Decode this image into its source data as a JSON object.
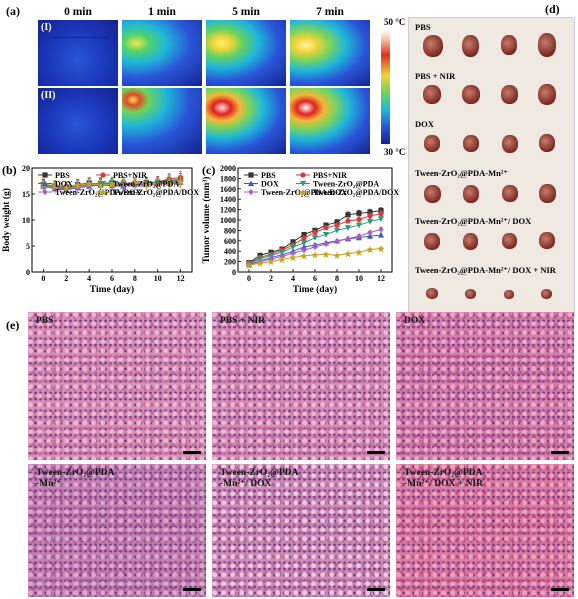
{
  "panel_a": {
    "label": "(a)",
    "times": [
      "0 min",
      "1 min",
      "5 min",
      "7 min"
    ],
    "rows": [
      "(I)",
      "(II)"
    ],
    "colorbar": {
      "max_label": "50 °C",
      "min_label": "30 °C"
    }
  },
  "panel_d": {
    "label": "(d)",
    "groups": [
      "PBS",
      "PBS + NIR",
      "DOX",
      "Tween-ZrO₂@PDA-Mn²⁺",
      "Tween-ZrO₂@PDA-Mn²⁺/ DOX",
      "Tween-ZrO₂@PDA-Mn²⁺/ DOX + NIR"
    ]
  },
  "panel_e": {
    "label": "(e)",
    "panels": [
      "PBS",
      "PBS + NIR",
      "DOX",
      "Tween-ZrO₂@PDA\n-Mn²⁺",
      "Tween-ZrO₂@PDA\n-Mn²⁺/ DOX",
      "Tween-ZrO₂@PDA\n-Mn²⁺/ DOX + NIR"
    ]
  },
  "chart_data": [
    {
      "panel_label": "(b)",
      "type": "line",
      "xlabel": "Time (day)",
      "ylabel": "Body weight (g)",
      "xlim": [
        -1,
        13
      ],
      "ylim": [
        0,
        20
      ],
      "xticks": [
        0,
        2,
        4,
        6,
        8,
        10,
        12
      ],
      "yticks": [
        0,
        5,
        10,
        15,
        20
      ],
      "x": [
        0,
        1,
        2,
        3,
        4,
        5,
        6,
        7,
        8,
        9,
        10,
        11,
        12
      ],
      "legend_position": "top",
      "series": [
        {
          "name": "PBS",
          "color": "#333333",
          "marker": "square",
          "values": [
            16.8,
            16.5,
            16.3,
            16.8,
            17.1,
            16.9,
            17.0,
            16.8,
            16.9,
            17.2,
            17.3,
            17.6,
            17.8
          ]
        },
        {
          "name": "PBS+NIR",
          "color": "#d93a3a",
          "marker": "circle",
          "values": [
            16.6,
            16.4,
            16.2,
            16.5,
            16.9,
            17.1,
            16.8,
            17.0,
            17.2,
            17.0,
            17.3,
            17.9,
            18.2
          ]
        },
        {
          "name": "DOX",
          "color": "#3a5fbf",
          "marker": "triangle",
          "values": [
            16.5,
            16.0,
            15.8,
            16.2,
            16.5,
            16.7,
            16.6,
            16.5,
            16.8,
            16.9,
            17.0,
            17.1,
            17.2
          ]
        },
        {
          "name": "Tween-ZrO₂@PDA",
          "color": "#2e9a7a",
          "marker": "triangle-down",
          "values": [
            16.7,
            16.3,
            16.0,
            16.6,
            16.8,
            17.0,
            17.2,
            17.1,
            16.9,
            17.1,
            17.2,
            17.4,
            17.5
          ]
        },
        {
          "name": "Tween-ZrO₂@PDA/DOX",
          "color": "#b05ac0",
          "marker": "diamond",
          "values": [
            16.4,
            16.1,
            15.9,
            16.3,
            16.6,
            16.8,
            16.7,
            16.6,
            16.8,
            16.7,
            16.9,
            17.0,
            17.1
          ]
        },
        {
          "name": "Tween-ZrO₂@PDA/DOX+NIR",
          "color": "#c9a21a",
          "marker": "star",
          "values": [
            16.9,
            16.6,
            16.4,
            16.7,
            17.0,
            16.8,
            16.9,
            17.0,
            17.1,
            16.9,
            17.0,
            17.3,
            17.4
          ]
        }
      ]
    },
    {
      "panel_label": "(c)",
      "type": "line",
      "xlabel": "Time (day)",
      "ylabel": "Tumor volume (mm³)",
      "xlim": [
        -1,
        13
      ],
      "ylim": [
        0,
        2000
      ],
      "xticks": [
        0,
        2,
        4,
        6,
        8,
        10,
        12
      ],
      "yticks": [
        0,
        200,
        400,
        600,
        800,
        1000,
        1200,
        1400,
        1600,
        1800,
        2000
      ],
      "x": [
        0,
        1,
        2,
        3,
        4,
        5,
        6,
        7,
        8,
        9,
        10,
        11,
        12
      ],
      "legend_position": "top",
      "series": [
        {
          "name": "PBS",
          "color": "#333333",
          "marker": "square",
          "values": [
            180,
            320,
            380,
            440,
            580,
            720,
            800,
            900,
            960,
            1100,
            1130,
            1150,
            1180
          ]
        },
        {
          "name": "PBS+NIR",
          "color": "#d93a3a",
          "marker": "circle",
          "values": [
            170,
            280,
            340,
            420,
            520,
            650,
            760,
            850,
            900,
            980,
            1010,
            1080,
            1120
          ]
        },
        {
          "name": "DOX",
          "color": "#3a5fbf",
          "marker": "triangle",
          "values": [
            150,
            210,
            280,
            330,
            400,
            480,
            520,
            560,
            600,
            640,
            660,
            690,
            710
          ]
        },
        {
          "name": "Tween-ZrO₂@PDA",
          "color": "#2e9a7a",
          "marker": "triangle-down",
          "values": [
            160,
            250,
            320,
            380,
            480,
            560,
            660,
            720,
            800,
            850,
            900,
            970,
            1020
          ]
        },
        {
          "name": "Tween-ZrO₂@PDA/DOX",
          "color": "#b05ac0",
          "marker": "diamond",
          "values": [
            140,
            200,
            250,
            300,
            360,
            420,
            480,
            540,
            590,
            640,
            690,
            760,
            820
          ]
        },
        {
          "name": "Tween-ZrO₂@PDA/DOX+NIR",
          "color": "#c9a21a",
          "marker": "star",
          "values": [
            130,
            170,
            200,
            240,
            280,
            310,
            330,
            340,
            320,
            350,
            380,
            430,
            450
          ]
        }
      ]
    }
  ]
}
